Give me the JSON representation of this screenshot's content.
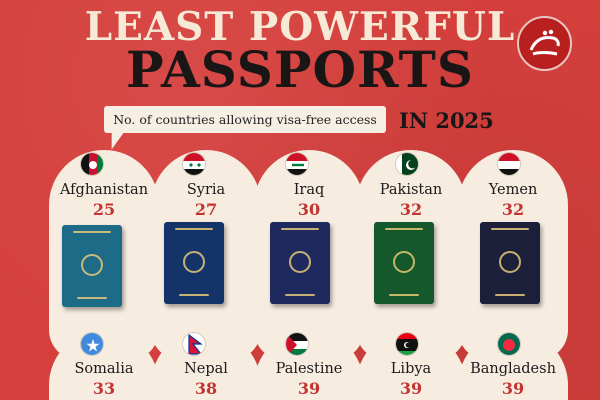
{
  "header": {
    "title_line1": "LEAST POWERFUL",
    "title_line2": "PASSPORTS",
    "subtitle": "No. of countries allowing visa-free access",
    "year": "IN 2025",
    "logo_icon": "brand-logo-icon"
  },
  "colors": {
    "background": "#d53f3c",
    "card": "#f6ecdf",
    "count": "#c23431"
  },
  "countries": [
    {
      "name": "Afghanistan",
      "count": "25",
      "passport_color": "#1d6b86",
      "flag_icon": "afghanistan-flag-icon"
    },
    {
      "name": "Syria",
      "count": "27",
      "passport_color": "#143469",
      "flag_icon": "syria-flag-icon"
    },
    {
      "name": "Iraq",
      "count": "30",
      "passport_color": "#1e2a5e",
      "flag_icon": "iraq-flag-icon"
    },
    {
      "name": "Pakistan",
      "count": "32",
      "passport_color": "#15582b",
      "flag_icon": "pakistan-flag-icon"
    },
    {
      "name": "Yemen",
      "count": "32",
      "passport_color": "#1c1f3a",
      "flag_icon": "yemen-flag-icon"
    },
    {
      "name": "Somalia",
      "count": "33",
      "flag_icon": "somalia-flag-icon"
    },
    {
      "name": "Nepal",
      "count": "38",
      "flag_icon": "nepal-flag-icon"
    },
    {
      "name": "Palestine",
      "count": "39",
      "flag_icon": "palestine-flag-icon"
    },
    {
      "name": "Libya",
      "count": "39",
      "flag_icon": "libya-flag-icon"
    },
    {
      "name": "Bangladesh",
      "count": "39",
      "flag_icon": "bangladesh-flag-icon"
    }
  ]
}
